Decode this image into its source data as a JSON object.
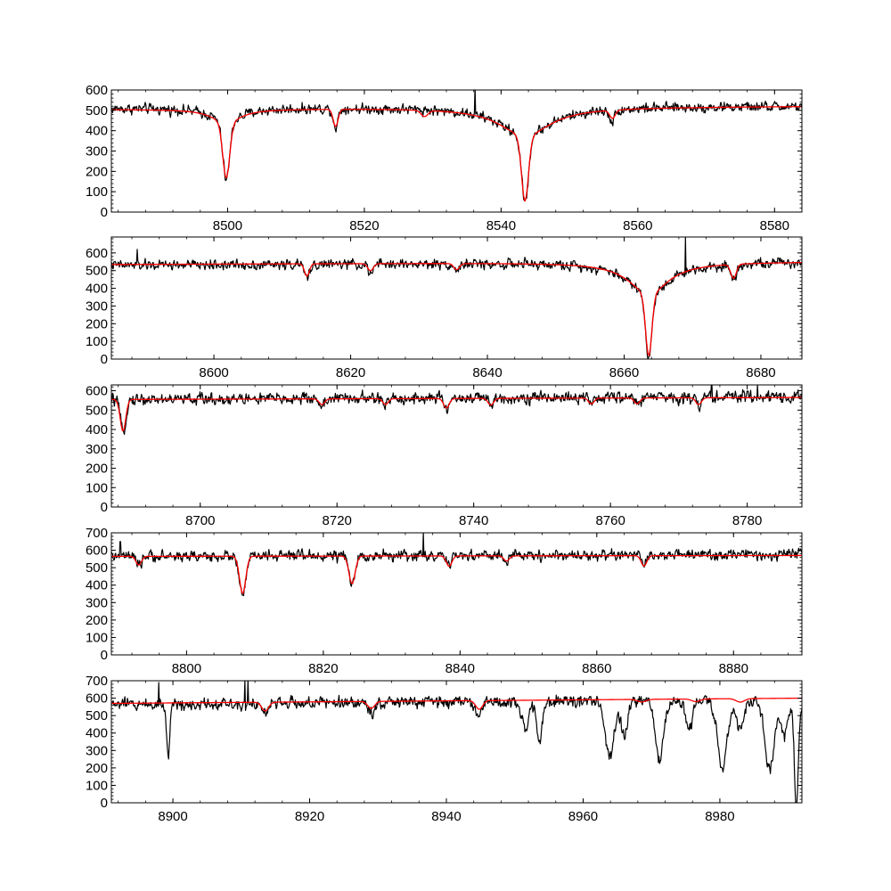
{
  "chart_data": [
    {
      "type": "line",
      "xlim": [
        8483,
        8584
      ],
      "ylim": [
        0,
        600
      ],
      "xticks": [
        8500,
        8520,
        8540,
        8560,
        8580
      ],
      "yticks": [
        0,
        100,
        200,
        300,
        400,
        500,
        600
      ],
      "grid": false,
      "series": [
        {
          "role": "observed",
          "color": "#000000",
          "noise": 18,
          "continuum": [
            [
              8483,
              510
            ],
            [
              8584,
              520
            ]
          ],
          "lines": [
            {
              "center": 8499.8,
              "depth": 280,
              "width": 0.5,
              "wing_depth": 70,
              "wing_width": 2.5
            },
            {
              "center": 8515.8,
              "depth": 90,
              "width": 0.35
            },
            {
              "center": 8543.5,
              "depth": 330,
              "width": 0.5,
              "wing_depth": 140,
              "wing_width": 4.5
            },
            {
              "center": 8556.3,
              "depth": 60,
              "width": 0.35
            }
          ],
          "spikes": [
            {
              "x": 8536.2,
              "y": 620
            }
          ]
        },
        {
          "role": "model",
          "color": "#ff0000",
          "noise": 0,
          "continuum": [
            [
              8483,
              505
            ],
            [
              8584,
              520
            ]
          ],
          "lines": [
            {
              "center": 8499.8,
              "depth": 270,
              "width": 0.5,
              "wing_depth": 70,
              "wing_width": 2.5
            },
            {
              "center": 8515.8,
              "depth": 85,
              "width": 0.35
            },
            {
              "center": 8528.8,
              "depth": 30,
              "width": 0.5
            },
            {
              "center": 8543.5,
              "depth": 320,
              "width": 0.5,
              "wing_depth": 140,
              "wing_width": 4.5
            },
            {
              "center": 8556.3,
              "depth": 40,
              "width": 0.4
            }
          ]
        }
      ]
    },
    {
      "type": "line",
      "xlim": [
        8585,
        8686
      ],
      "ylim": [
        0,
        690
      ],
      "xticks": [
        8600,
        8620,
        8640,
        8660,
        8680
      ],
      "yticks": [
        0,
        100,
        200,
        300,
        400,
        500,
        600
      ],
      "grid": false,
      "series": [
        {
          "role": "observed",
          "color": "#000000",
          "noise": 20,
          "continuum": [
            [
              8585,
              530
            ],
            [
              8686,
              550
            ]
          ],
          "lines": [
            {
              "center": 8613.6,
              "depth": 80,
              "width": 0.35
            },
            {
              "center": 8622.9,
              "depth": 60,
              "width": 0.35
            },
            {
              "center": 8635.5,
              "depth": 40,
              "width": 0.35
            },
            {
              "center": 8663.6,
              "depth": 370,
              "width": 0.45,
              "wing_depth": 180,
              "wing_width": 3.5
            },
            {
              "center": 8676.0,
              "depth": 90,
              "width": 0.4
            }
          ],
          "spikes": [
            {
              "x": 8669.0,
              "y": 690
            },
            {
              "x": 8588.8,
              "y": 620
            }
          ]
        },
        {
          "role": "model",
          "color": "#ff0000",
          "noise": 0,
          "continuum": [
            [
              8585,
              535
            ],
            [
              8686,
              550
            ]
          ],
          "lines": [
            {
              "center": 8613.6,
              "depth": 70,
              "width": 0.35
            },
            {
              "center": 8622.9,
              "depth": 40,
              "width": 0.4
            },
            {
              "center": 8635.5,
              "depth": 35,
              "width": 0.4
            },
            {
              "center": 8663.6,
              "depth": 350,
              "width": 0.45,
              "wing_depth": 180,
              "wing_width": 3.5
            },
            {
              "center": 8676.0,
              "depth": 80,
              "width": 0.4
            }
          ]
        }
      ]
    },
    {
      "type": "line",
      "xlim": [
        8687,
        8788
      ],
      "ylim": [
        0,
        630
      ],
      "xticks": [
        8700,
        8720,
        8740,
        8760,
        8780
      ],
      "yticks": [
        0,
        100,
        200,
        300,
        400,
        500,
        600
      ],
      "grid": false,
      "series": [
        {
          "role": "observed",
          "color": "#000000",
          "noise": 22,
          "continuum": [
            [
              8687,
              555
            ],
            [
              8788,
              570
            ]
          ],
          "lines": [
            {
              "center": 8688.7,
              "depth": 170,
              "width": 0.4
            },
            {
              "center": 8717.8,
              "depth": 40,
              "width": 0.35
            },
            {
              "center": 8727.1,
              "depth": 40,
              "width": 0.35
            },
            {
              "center": 8736.0,
              "depth": 60,
              "width": 0.35
            },
            {
              "center": 8742.5,
              "depth": 45,
              "width": 0.35
            },
            {
              "center": 8757.2,
              "depth": 50,
              "width": 0.35
            },
            {
              "center": 8763.9,
              "depth": 40,
              "width": 0.35
            },
            {
              "center": 8772.9,
              "depth": 45,
              "width": 0.35
            }
          ],
          "spikes": [
            {
              "x": 8774.8,
              "y": 630
            },
            {
              "x": 8781.5,
              "y": 630
            }
          ]
        },
        {
          "role": "model",
          "color": "#ff0000",
          "noise": 0,
          "continuum": [
            [
              8687,
              555
            ],
            [
              8788,
              565
            ]
          ],
          "lines": [
            {
              "center": 8688.7,
              "depth": 165,
              "width": 0.4
            },
            {
              "center": 8717.8,
              "depth": 30,
              "width": 0.4
            },
            {
              "center": 8727.1,
              "depth": 30,
              "width": 0.4
            },
            {
              "center": 8736.0,
              "depth": 50,
              "width": 0.4
            },
            {
              "center": 8742.5,
              "depth": 35,
              "width": 0.4
            },
            {
              "center": 8757.2,
              "depth": 30,
              "width": 0.4
            },
            {
              "center": 8763.9,
              "depth": 30,
              "width": 0.4
            },
            {
              "center": 8772.9,
              "depth": 35,
              "width": 0.4
            }
          ]
        }
      ]
    },
    {
      "type": "line",
      "xlim": [
        8789,
        8890
      ],
      "ylim": [
        0,
        700
      ],
      "xticks": [
        8800,
        8820,
        8840,
        8860,
        8880
      ],
      "yticks": [
        0,
        100,
        200,
        300,
        400,
        500,
        600,
        700
      ],
      "grid": false,
      "series": [
        {
          "role": "observed",
          "color": "#000000",
          "noise": 22,
          "continuum": [
            [
              8789,
              565
            ],
            [
              8890,
              575
            ]
          ],
          "lines": [
            {
              "center": 8793.0,
              "depth": 60,
              "width": 0.35
            },
            {
              "center": 8808.2,
              "depth": 240,
              "width": 0.45
            },
            {
              "center": 8824.2,
              "depth": 170,
              "width": 0.45
            },
            {
              "center": 8838.4,
              "depth": 70,
              "width": 0.35
            },
            {
              "center": 8846.8,
              "depth": 40,
              "width": 0.35
            },
            {
              "center": 8866.9,
              "depth": 70,
              "width": 0.35
            }
          ],
          "spikes": [
            {
              "x": 8834.6,
              "y": 700
            },
            {
              "x": 8790.3,
              "y": 650
            }
          ]
        },
        {
          "role": "model",
          "color": "#ff0000",
          "noise": 0,
          "continuum": [
            [
              8789,
              565
            ],
            [
              8890,
              570
            ]
          ],
          "lines": [
            {
              "center": 8793.0,
              "depth": 50,
              "width": 0.4
            },
            {
              "center": 8808.2,
              "depth": 215,
              "width": 0.45
            },
            {
              "center": 8824.2,
              "depth": 160,
              "width": 0.45
            },
            {
              "center": 8838.4,
              "depth": 60,
              "width": 0.4
            },
            {
              "center": 8846.8,
              "depth": 30,
              "width": 0.4
            },
            {
              "center": 8866.9,
              "depth": 60,
              "width": 0.4
            }
          ]
        }
      ]
    },
    {
      "type": "line",
      "xlim": [
        8891,
        8992
      ],
      "ylim": [
        0,
        700
      ],
      "xticks": [
        8900,
        8920,
        8940,
        8960,
        8980
      ],
      "yticks": [
        0,
        100,
        200,
        300,
        400,
        500,
        600,
        700
      ],
      "grid": false,
      "series": [
        {
          "role": "observed",
          "color": "#000000",
          "noise": 25,
          "continuum": [
            [
              8891,
              565
            ],
            [
              8950,
              580
            ],
            [
              8992,
              590
            ]
          ],
          "lines": [
            {
              "center": 8899.3,
              "depth": 280,
              "width": 0.25
            },
            {
              "center": 8913.5,
              "depth": 70,
              "width": 0.4
            },
            {
              "center": 8929.0,
              "depth": 60,
              "width": 0.4
            },
            {
              "center": 8944.8,
              "depth": 80,
              "width": 0.4
            },
            {
              "center": 8951.5,
              "depth": 150,
              "width": 0.6
            },
            {
              "center": 8953.6,
              "depth": 220,
              "width": 0.4
            },
            {
              "center": 8963.9,
              "depth": 300,
              "width": 0.7
            },
            {
              "center": 8966.0,
              "depth": 200,
              "width": 0.5
            },
            {
              "center": 8971.2,
              "depth": 340,
              "width": 0.6
            },
            {
              "center": 8975.5,
              "depth": 160,
              "width": 0.5
            },
            {
              "center": 8980.4,
              "depth": 400,
              "width": 0.7
            },
            {
              "center": 8983.0,
              "depth": 180,
              "width": 0.5
            },
            {
              "center": 8987.3,
              "depth": 400,
              "width": 0.7
            },
            {
              "center": 8989.5,
              "depth": 200,
              "width": 0.5
            },
            {
              "center": 8991.2,
              "depth": 590,
              "width": 0.3
            }
          ],
          "spikes": [
            {
              "x": 8897.9,
              "y": 690
            },
            {
              "x": 8910.5,
              "y": 700
            },
            {
              "x": 8911.0,
              "y": 700
            }
          ]
        },
        {
          "role": "model",
          "color": "#ff0000",
          "noise": 0,
          "continuum": [
            [
              8891,
              570
            ],
            [
              8992,
              600
            ]
          ],
          "lines": [
            {
              "center": 8913.5,
              "depth": 50,
              "width": 0.5
            },
            {
              "center": 8929.0,
              "depth": 40,
              "width": 0.5
            },
            {
              "center": 8944.8,
              "depth": 50,
              "width": 0.5
            },
            {
              "center": 8968.6,
              "depth": 15,
              "width": 0.6
            },
            {
              "center": 8976.5,
              "depth": 15,
              "width": 0.6
            },
            {
              "center": 8983.0,
              "depth": 20,
              "width": 0.6
            }
          ]
        }
      ]
    }
  ]
}
